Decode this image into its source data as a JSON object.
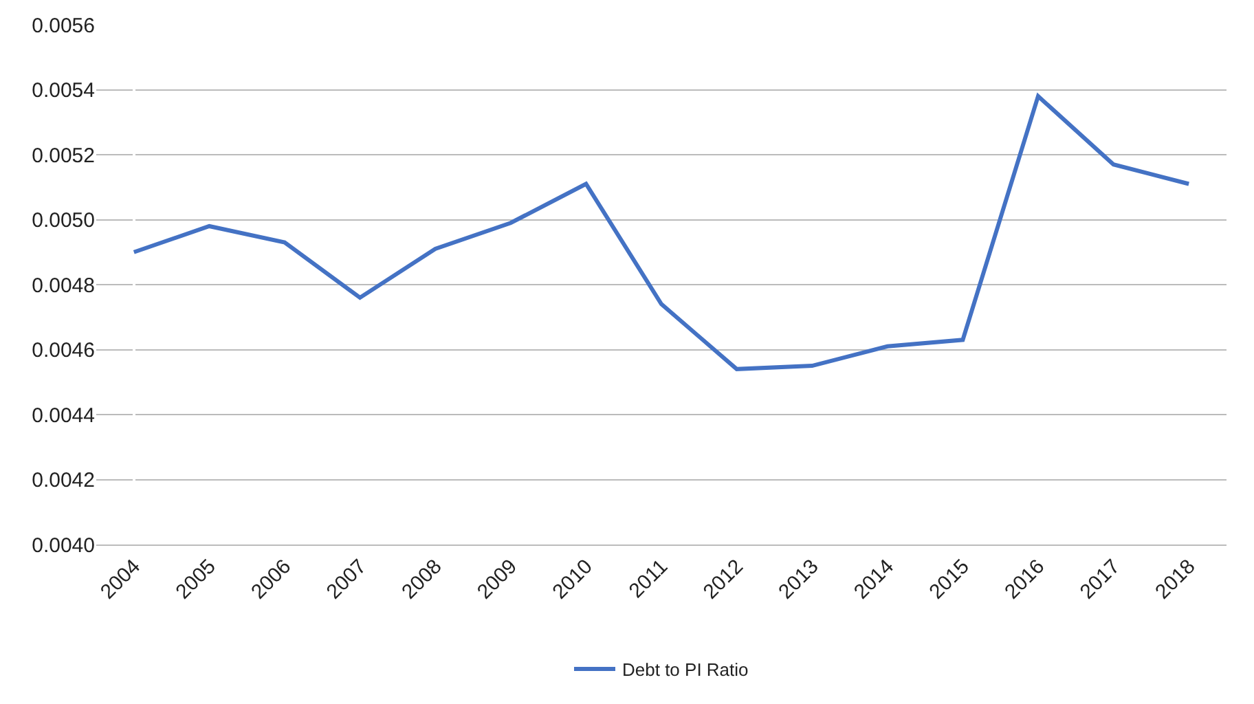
{
  "chart_data": {
    "type": "line",
    "categories": [
      "2004",
      "2005",
      "2006",
      "2007",
      "2008",
      "2009",
      "2010",
      "2011",
      "2012",
      "2013",
      "2014",
      "2015",
      "2016",
      "2017",
      "2018"
    ],
    "series": [
      {
        "name": "Debt to PI Ratio",
        "color": "#4472c4",
        "values": [
          0.0049,
          0.00498,
          0.00493,
          0.00476,
          0.00491,
          0.00499,
          0.00511,
          0.00474,
          0.00454,
          0.00455,
          0.00461,
          0.00463,
          0.00538,
          0.00517,
          0.00511
        ]
      }
    ],
    "ylim": [
      0.004,
      0.0056
    ],
    "yticks": [
      {
        "value": 0.004,
        "label": "0.0040"
      },
      {
        "value": 0.0042,
        "label": "0.0042"
      },
      {
        "value": 0.0044,
        "label": "0.0044"
      },
      {
        "value": 0.0046,
        "label": "0.0046"
      },
      {
        "value": 0.0048,
        "label": "0.0048"
      },
      {
        "value": 0.005,
        "label": "0.0050"
      },
      {
        "value": 0.0052,
        "label": "0.0052"
      },
      {
        "value": 0.0054,
        "label": "0.0054"
      },
      {
        "value": 0.0056,
        "label": "0.0056"
      }
    ],
    "grid": "y",
    "legend": "bottom",
    "marker": "none",
    "line_style": "solid"
  }
}
